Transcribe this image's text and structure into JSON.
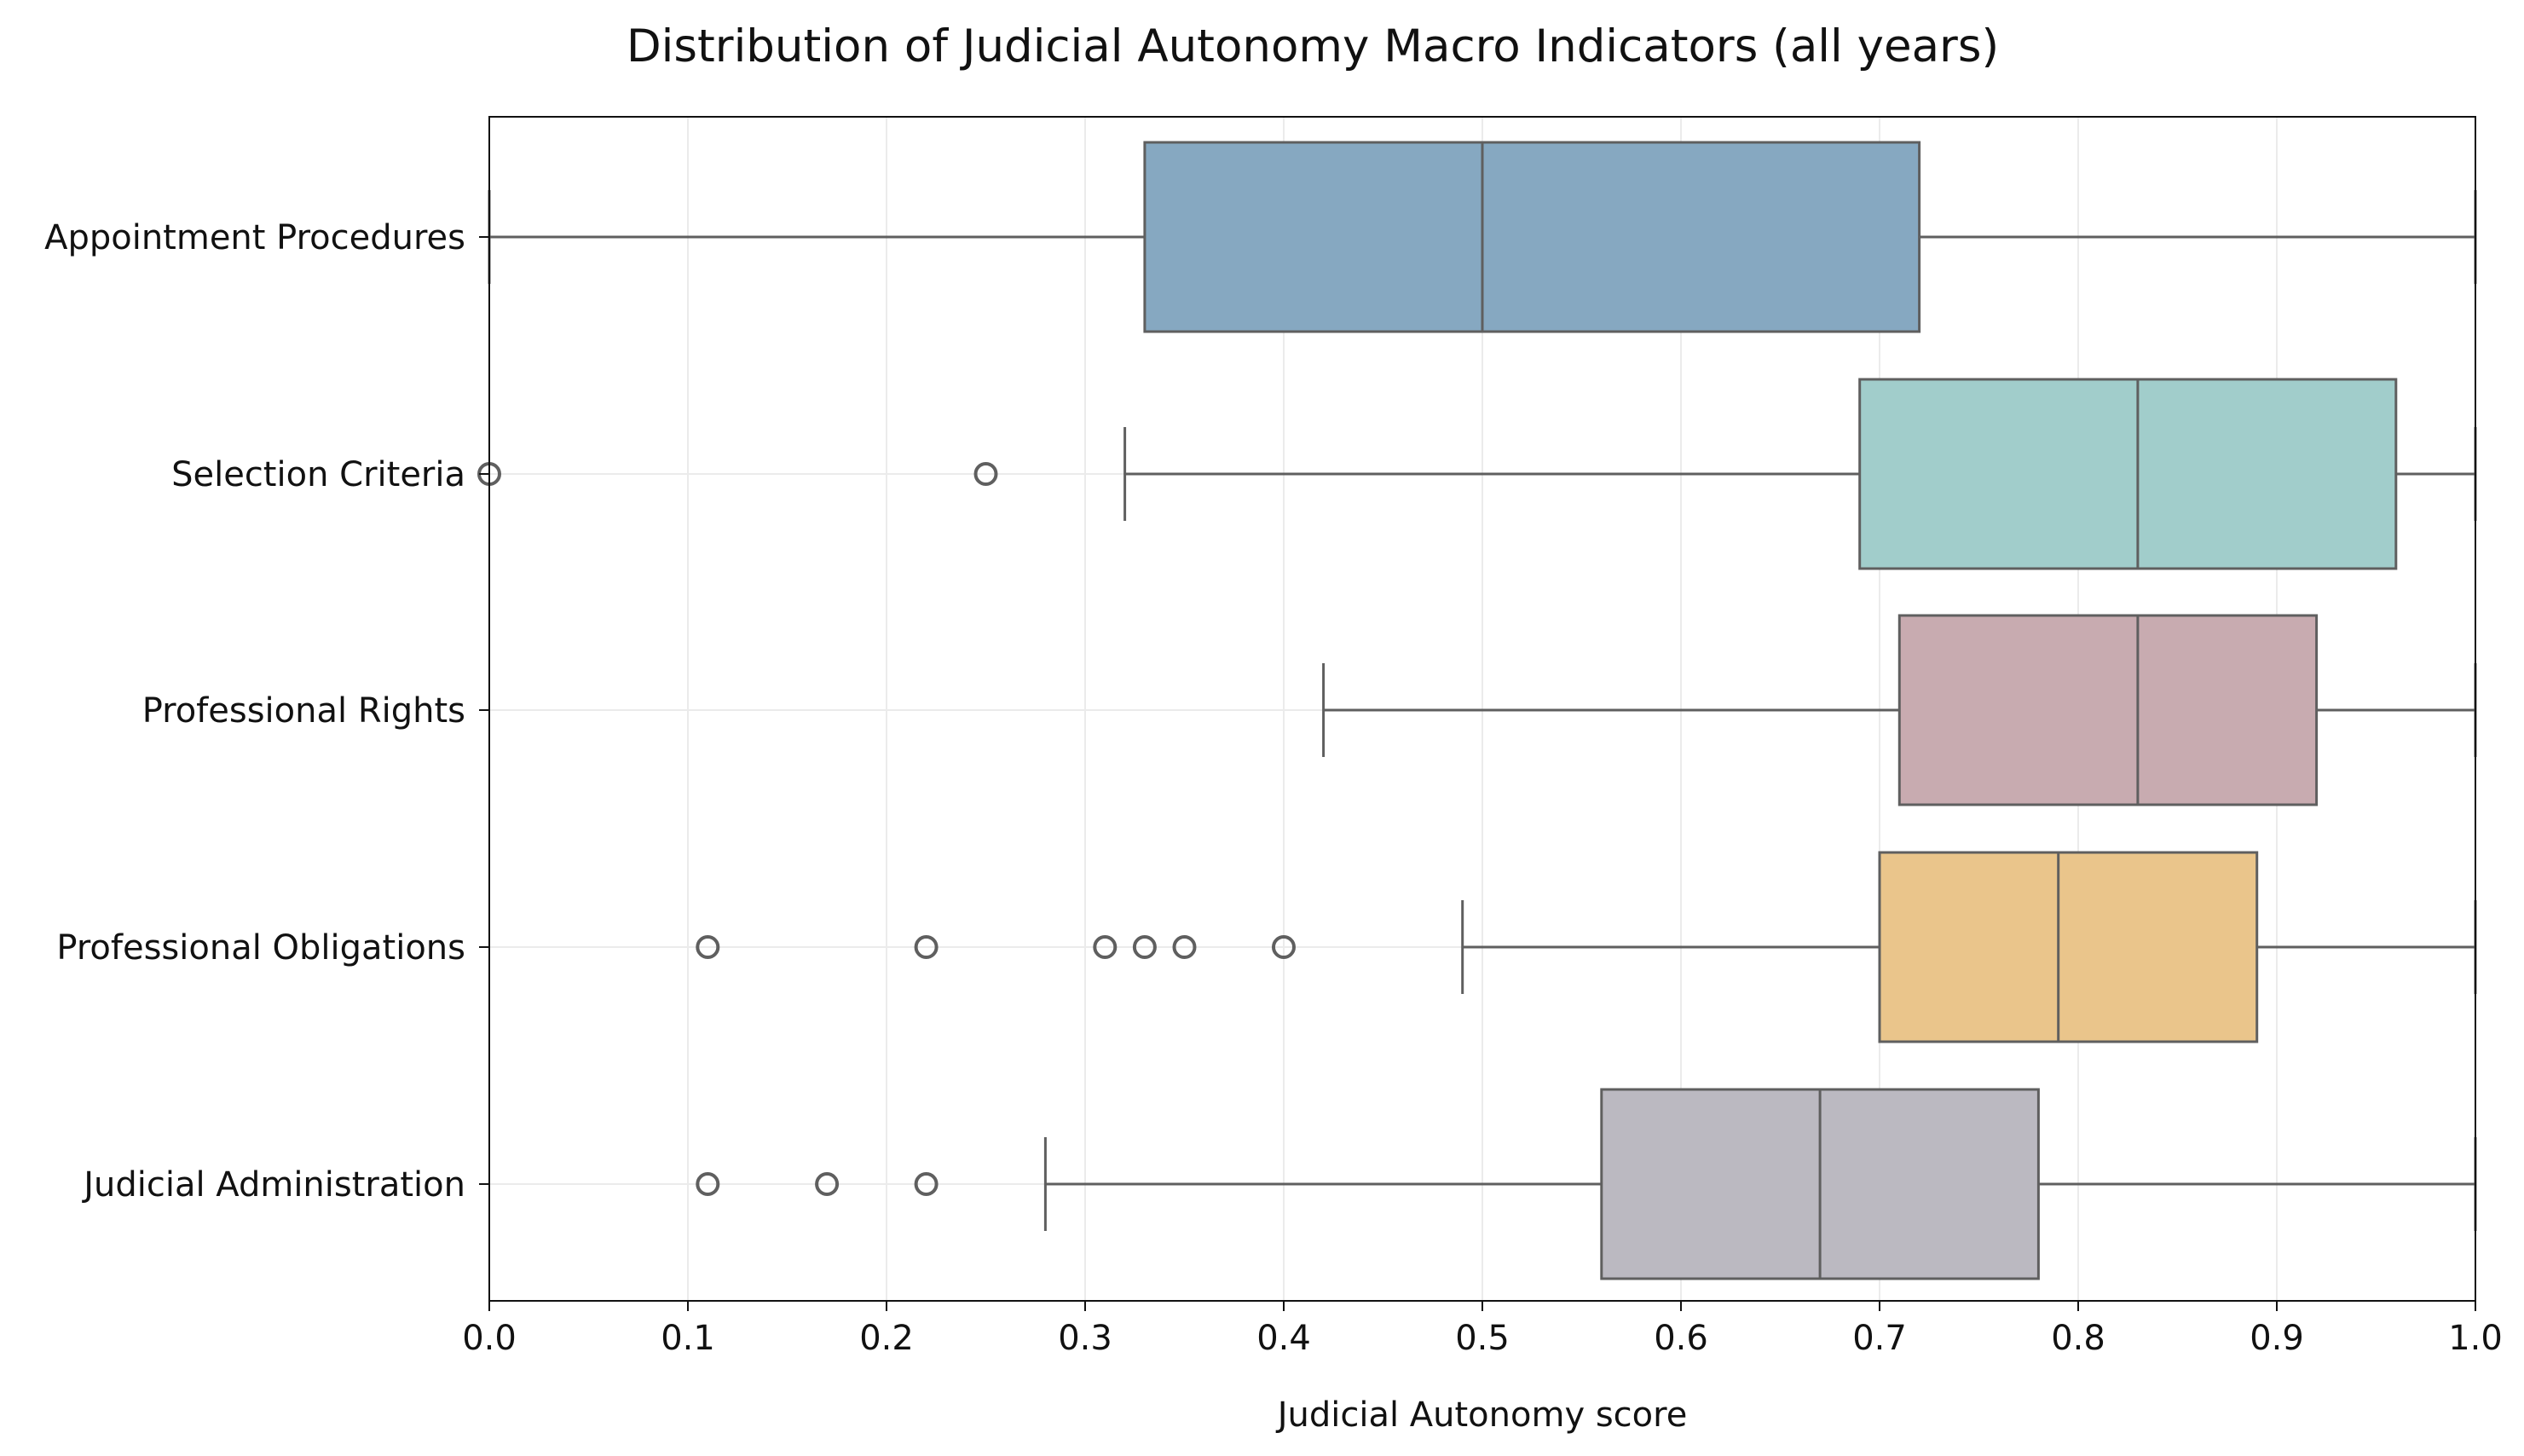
{
  "chart_data": {
    "type": "boxplot",
    "orientation": "horizontal",
    "title": "Distribution of Judicial Autonomy Macro Indicators (all years)",
    "xlabel": "Judicial Autonomy score",
    "ylabel": "",
    "xlim": [
      0.0,
      1.0
    ],
    "x_ticks": [
      "0.0",
      "0.1",
      "0.2",
      "0.3",
      "0.4",
      "0.5",
      "0.6",
      "0.7",
      "0.8",
      "0.9",
      "1.0"
    ],
    "grid": true,
    "legend": "none",
    "series": [
      {
        "category": "Appointment Procedures",
        "min": 0.0,
        "q1": 0.33,
        "median": 0.5,
        "q3": 0.72,
        "max": 1.0,
        "outliers": [],
        "color": "#86a8c1"
      },
      {
        "category": "Selection Criteria",
        "min": 0.32,
        "q1": 0.69,
        "median": 0.83,
        "q3": 0.96,
        "max": 1.0,
        "outliers": [
          0.0,
          0.25
        ],
        "color": "#a1cdcb"
      },
      {
        "category": "Professional Rights",
        "min": 0.42,
        "q1": 0.71,
        "median": 0.83,
        "q3": 0.92,
        "max": 1.0,
        "outliers": [],
        "color": "#c8abb0"
      },
      {
        "category": "Professional Obligations",
        "min": 0.49,
        "q1": 0.7,
        "median": 0.79,
        "q3": 0.89,
        "max": 1.0,
        "outliers": [
          0.11,
          0.22,
          0.31,
          0.33,
          0.35,
          0.4
        ],
        "color": "#eac58b"
      },
      {
        "category": "Judicial Administration",
        "min": 0.28,
        "q1": 0.56,
        "median": 0.67,
        "q3": 0.78,
        "max": 1.0,
        "outliers": [
          0.11,
          0.17,
          0.22
        ],
        "color": "#bbb9c1"
      }
    ],
    "line_color": "#5f5f5f",
    "grid_color": "#ebebeb"
  }
}
